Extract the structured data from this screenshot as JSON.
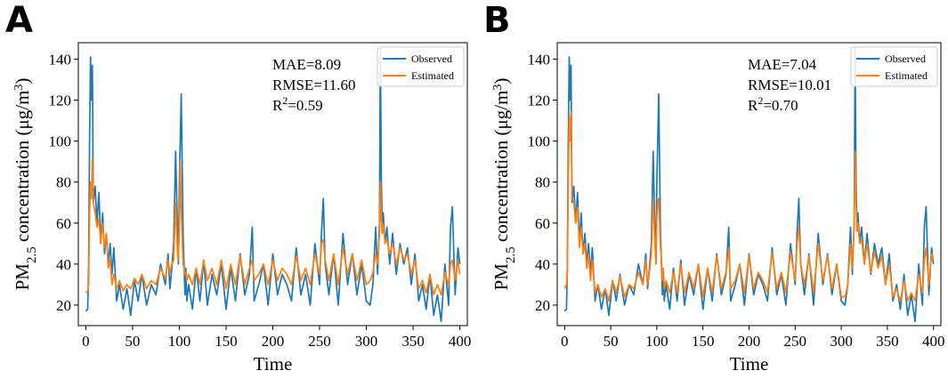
{
  "chart_data": [
    {
      "type": "line",
      "panel_label": "A",
      "xlabel": "Time",
      "ylabel": {
        "prefix": "PM",
        "sub": "2.5",
        "middle": " concentration (μg/m",
        "sup": "3",
        "suffix": ")"
      },
      "xlim": [
        -8,
        408
      ],
      "ylim": [
        10,
        148
      ],
      "xticks": [
        0,
        50,
        100,
        150,
        200,
        250,
        300,
        350,
        400
      ],
      "yticks": [
        20,
        40,
        60,
        80,
        100,
        120,
        140
      ],
      "legend": {
        "position": "top-right",
        "entries": [
          "Observed",
          "Estimated"
        ]
      },
      "colors": {
        "Observed": "#1f77b4",
        "Estimated": "#ff7f0e"
      },
      "stats": {
        "mae": "MAE=8.09",
        "rmse": "RMSE=11.60",
        "r2_base": "R",
        "r2_sup": "2",
        "r2_value": "=0.59"
      },
      "series": [
        {
          "name": "Observed",
          "x": [
            0,
            2,
            3,
            4,
            5,
            6,
            7,
            8,
            10,
            12,
            14,
            16,
            18,
            20,
            22,
            24,
            26,
            28,
            30,
            33,
            36,
            40,
            44,
            48,
            52,
            56,
            60,
            65,
            70,
            75,
            80,
            85,
            88,
            90,
            92,
            94,
            96,
            98,
            99,
            100,
            101,
            102,
            104,
            105,
            106,
            107,
            108,
            110,
            114,
            118,
            122,
            126,
            130,
            135,
            140,
            145,
            150,
            155,
            160,
            165,
            170,
            175,
            178,
            180,
            185,
            190,
            195,
            200,
            205,
            210,
            215,
            220,
            225,
            230,
            235,
            240,
            245,
            250,
            252,
            254,
            256,
            260,
            265,
            270,
            275,
            280,
            285,
            290,
            295,
            300,
            304,
            307,
            310,
            312,
            314,
            315,
            316,
            317,
            318,
            320,
            322,
            325,
            328,
            332,
            336,
            340,
            344,
            348,
            352,
            356,
            360,
            364,
            368,
            372,
            376,
            380,
            384,
            388,
            390,
            392,
            395,
            398,
            400
          ],
          "y": [
            17,
            18,
            40,
            100,
            141,
            120,
            137,
            70,
            78,
            60,
            75,
            50,
            65,
            45,
            55,
            40,
            50,
            35,
            48,
            22,
            30,
            18,
            28,
            15,
            32,
            22,
            35,
            20,
            30,
            25,
            40,
            30,
            45,
            28,
            38,
            50,
            95,
            55,
            40,
            80,
            100,
            123,
            55,
            40,
            25,
            38,
            22,
            30,
            18,
            38,
            22,
            42,
            20,
            35,
            25,
            40,
            18,
            38,
            22,
            45,
            25,
            35,
            58,
            22,
            30,
            40,
            20,
            45,
            25,
            35,
            30,
            22,
            48,
            25,
            35,
            20,
            50,
            30,
            55,
            72,
            40,
            25,
            45,
            20,
            55,
            30,
            45,
            25,
            40,
            22,
            20,
            30,
            58,
            35,
            60,
            145,
            80,
            60,
            65,
            50,
            58,
            40,
            55,
            35,
            50,
            40,
            48,
            30,
            45,
            22,
            30,
            18,
            35,
            15,
            25,
            12,
            40,
            20,
            58,
            68,
            25,
            48,
            40
          ]
        },
        {
          "name": "Estimated",
          "x": [
            0,
            2,
            3,
            4,
            5,
            6,
            7,
            8,
            10,
            12,
            14,
            16,
            18,
            20,
            22,
            24,
            26,
            28,
            30,
            33,
            36,
            40,
            44,
            48,
            52,
            56,
            60,
            65,
            70,
            75,
            80,
            85,
            88,
            90,
            92,
            94,
            96,
            98,
            99,
            100,
            101,
            102,
            104,
            105,
            106,
            107,
            108,
            110,
            114,
            118,
            122,
            126,
            130,
            135,
            140,
            145,
            150,
            155,
            160,
            165,
            170,
            175,
            178,
            180,
            185,
            190,
            195,
            200,
            205,
            210,
            215,
            220,
            225,
            230,
            235,
            240,
            245,
            250,
            252,
            254,
            256,
            260,
            265,
            270,
            275,
            280,
            285,
            290,
            295,
            300,
            304,
            307,
            310,
            312,
            314,
            315,
            316,
            317,
            318,
            320,
            322,
            325,
            328,
            332,
            336,
            340,
            344,
            348,
            352,
            356,
            360,
            364,
            368,
            372,
            376,
            380,
            384,
            388,
            390,
            392,
            395,
            398,
            400
          ],
          "y": [
            26,
            27,
            30,
            65,
            80,
            72,
            92,
            70,
            65,
            58,
            62,
            50,
            60,
            48,
            55,
            38,
            42,
            30,
            35,
            28,
            32,
            27,
            30,
            28,
            33,
            30,
            35,
            28,
            32,
            30,
            38,
            33,
            42,
            36,
            40,
            42,
            70,
            45,
            42,
            60,
            90,
            66,
            40,
            38,
            35,
            36,
            32,
            35,
            30,
            38,
            30,
            42,
            32,
            38,
            30,
            42,
            28,
            40,
            30,
            44,
            30,
            38,
            42,
            32,
            35,
            40,
            30,
            42,
            32,
            38,
            35,
            30,
            44,
            32,
            38,
            30,
            45,
            35,
            50,
            52,
            42,
            32,
            45,
            30,
            48,
            35,
            45,
            32,
            42,
            30,
            32,
            36,
            45,
            40,
            55,
            80,
            62,
            55,
            60,
            50,
            52,
            45,
            50,
            40,
            48,
            42,
            45,
            35,
            42,
            28,
            32,
            26,
            35,
            25,
            30,
            25,
            36,
            30,
            40,
            42,
            32,
            42,
            35
          ]
        }
      ]
    },
    {
      "type": "line",
      "panel_label": "B",
      "xlabel": "Time",
      "ylabel": {
        "prefix": "PM",
        "sub": "2.5",
        "middle": " concentration (μg/m",
        "sup": "3",
        "suffix": ")"
      },
      "xlim": [
        -8,
        408
      ],
      "ylim": [
        10,
        148
      ],
      "xticks": [
        0,
        50,
        100,
        150,
        200,
        250,
        300,
        350,
        400
      ],
      "yticks": [
        20,
        40,
        60,
        80,
        100,
        120,
        140
      ],
      "legend": {
        "position": "top-right",
        "entries": [
          "Observed",
          "Estimated"
        ]
      },
      "colors": {
        "Observed": "#1f77b4",
        "Estimated": "#ff7f0e"
      },
      "stats": {
        "mae": "MAE=7.04",
        "rmse": "RMSE=10.01",
        "r2_base": "R",
        "r2_sup": "2",
        "r2_value": "=0.70"
      },
      "series": [
        {
          "name": "Observed",
          "x": [
            0,
            2,
            3,
            4,
            5,
            6,
            7,
            8,
            10,
            12,
            14,
            16,
            18,
            20,
            22,
            24,
            26,
            28,
            30,
            33,
            36,
            40,
            44,
            48,
            52,
            56,
            60,
            65,
            70,
            75,
            80,
            85,
            88,
            90,
            92,
            94,
            96,
            98,
            99,
            100,
            101,
            102,
            104,
            105,
            106,
            107,
            108,
            110,
            114,
            118,
            122,
            126,
            130,
            135,
            140,
            145,
            150,
            155,
            160,
            165,
            170,
            175,
            178,
            180,
            185,
            190,
            195,
            200,
            205,
            210,
            215,
            220,
            225,
            230,
            235,
            240,
            245,
            250,
            252,
            254,
            256,
            260,
            265,
            270,
            275,
            280,
            285,
            290,
            295,
            300,
            304,
            307,
            310,
            312,
            314,
            315,
            316,
            317,
            318,
            320,
            322,
            325,
            328,
            332,
            336,
            340,
            344,
            348,
            352,
            356,
            360,
            364,
            368,
            372,
            376,
            380,
            384,
            388,
            390,
            392,
            395,
            398,
            400
          ],
          "y": [
            17,
            18,
            40,
            100,
            141,
            120,
            137,
            70,
            78,
            60,
            75,
            50,
            65,
            45,
            55,
            40,
            50,
            35,
            48,
            22,
            30,
            18,
            28,
            15,
            32,
            22,
            35,
            20,
            30,
            25,
            40,
            30,
            45,
            28,
            38,
            50,
            95,
            55,
            40,
            80,
            100,
            123,
            55,
            40,
            25,
            38,
            22,
            30,
            18,
            38,
            22,
            42,
            20,
            35,
            25,
            40,
            18,
            38,
            22,
            45,
            25,
            35,
            58,
            22,
            30,
            40,
            20,
            45,
            25,
            35,
            30,
            22,
            48,
            25,
            35,
            20,
            50,
            30,
            55,
            72,
            40,
            25,
            45,
            20,
            55,
            30,
            45,
            25,
            40,
            22,
            20,
            30,
            58,
            35,
            60,
            145,
            80,
            60,
            65,
            50,
            58,
            40,
            55,
            35,
            50,
            40,
            48,
            30,
            45,
            22,
            30,
            18,
            35,
            15,
            25,
            12,
            40,
            20,
            58,
            68,
            25,
            48,
            40
          ]
        },
        {
          "name": "Estimated",
          "x": [
            0,
            2,
            3,
            4,
            5,
            6,
            7,
            8,
            10,
            12,
            14,
            16,
            18,
            20,
            22,
            24,
            26,
            28,
            30,
            33,
            36,
            40,
            44,
            48,
            52,
            56,
            60,
            65,
            70,
            75,
            80,
            85,
            88,
            90,
            92,
            94,
            96,
            98,
            99,
            100,
            101,
            102,
            104,
            105,
            106,
            107,
            108,
            110,
            114,
            118,
            122,
            126,
            130,
            135,
            140,
            145,
            150,
            155,
            160,
            165,
            170,
            175,
            178,
            180,
            185,
            190,
            195,
            200,
            205,
            210,
            215,
            220,
            225,
            230,
            235,
            240,
            245,
            250,
            252,
            254,
            256,
            260,
            265,
            270,
            275,
            280,
            285,
            290,
            295,
            300,
            304,
            307,
            310,
            312,
            314,
            315,
            316,
            317,
            318,
            320,
            322,
            325,
            328,
            332,
            336,
            340,
            344,
            348,
            352,
            356,
            360,
            364,
            368,
            372,
            376,
            380,
            384,
            388,
            390,
            392,
            395,
            398,
            400
          ],
          "y": [
            28,
            30,
            35,
            80,
            112,
            100,
            114,
            72,
            70,
            60,
            68,
            48,
            58,
            45,
            50,
            38,
            45,
            32,
            42,
            26,
            30,
            24,
            28,
            22,
            32,
            26,
            34,
            24,
            30,
            28,
            36,
            30,
            42,
            30,
            36,
            45,
            72,
            50,
            40,
            62,
            70,
            72,
            48,
            42,
            32,
            38,
            28,
            32,
            26,
            36,
            26,
            40,
            26,
            36,
            28,
            40,
            24,
            38,
            26,
            44,
            28,
            36,
            48,
            28,
            32,
            40,
            26,
            44,
            28,
            36,
            32,
            26,
            46,
            28,
            36,
            26,
            46,
            32,
            50,
            58,
            40,
            30,
            44,
            26,
            50,
            32,
            44,
            28,
            40,
            24,
            24,
            30,
            50,
            38,
            58,
            95,
            70,
            56,
            60,
            50,
            52,
            40,
            50,
            36,
            46,
            38,
            44,
            30,
            40,
            24,
            28,
            22,
            32,
            22,
            26,
            22,
            35,
            26,
            42,
            48,
            30,
            45,
            42
          ]
        }
      ]
    }
  ]
}
